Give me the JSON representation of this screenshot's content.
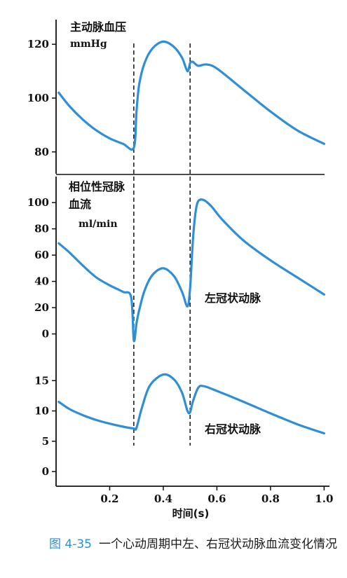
{
  "chart_data": [
    {
      "type": "line",
      "title": "主动脉血压",
      "unit": "mmHg",
      "ylim": [
        75,
        125
      ],
      "yticks": [
        80,
        100,
        120
      ],
      "color": "#2e8fd8",
      "series": [
        {
          "name": "",
          "x": [
            0.01,
            0.05,
            0.1,
            0.15,
            0.2,
            0.25,
            0.29,
            0.3,
            0.31,
            0.33,
            0.36,
            0.4,
            0.44,
            0.47,
            0.49,
            0.5,
            0.51,
            0.53,
            0.56,
            0.6,
            0.7,
            0.8,
            0.9,
            1.0
          ],
          "y": [
            102,
            97,
            92,
            88,
            85,
            83,
            81.5,
            95,
            105,
            113,
            118.5,
            121,
            119,
            115,
            110,
            113,
            113.5,
            112,
            112.5,
            111,
            103,
            95,
            88,
            83
          ]
        }
      ]
    },
    {
      "type": "line",
      "title": "相位性冠脉血流",
      "unit": "ml/min",
      "ylim": [
        -5,
        107
      ],
      "yticks": [
        0,
        20,
        40,
        60,
        80,
        100
      ],
      "series": [
        {
          "name": "左冠状动脉",
          "x": [
            0.01,
            0.05,
            0.1,
            0.15,
            0.2,
            0.25,
            0.28,
            0.29,
            0.3,
            0.31,
            0.33,
            0.36,
            0.4,
            0.44,
            0.47,
            0.49,
            0.5,
            0.51,
            0.52,
            0.53,
            0.55,
            0.58,
            0.62,
            0.7,
            0.8,
            0.9,
            1.0
          ],
          "y": [
            69,
            62,
            52,
            43,
            37,
            32,
            28,
            -5,
            8,
            18,
            33,
            45,
            50,
            44,
            32,
            21,
            35,
            70,
            92,
            101,
            102,
            97,
            87,
            71,
            56,
            43,
            30
          ]
        }
      ]
    },
    {
      "type": "line",
      "title": "",
      "unit": "",
      "ylim": [
        -1.5,
        17
      ],
      "yticks": [
        0,
        5,
        10,
        15
      ],
      "series": [
        {
          "name": "右冠状动脉",
          "x": [
            0.01,
            0.05,
            0.1,
            0.15,
            0.2,
            0.25,
            0.29,
            0.3,
            0.32,
            0.35,
            0.4,
            0.44,
            0.47,
            0.49,
            0.5,
            0.51,
            0.53,
            0.55,
            0.6,
            0.7,
            0.8,
            0.9,
            1.0
          ],
          "y": [
            11.5,
            10.3,
            9.3,
            8.5,
            7.9,
            7.4,
            7.1,
            7.2,
            10.5,
            14.2,
            16,
            15.2,
            13,
            10,
            9.8,
            11.5,
            13.8,
            14.1,
            13.3,
            11.5,
            9.6,
            7.8,
            6.3
          ]
        }
      ]
    }
  ],
  "x_axis": {
    "label": "时间(s)",
    "ticks": [
      0.2,
      0.4,
      0.6,
      0.8,
      1.0
    ],
    "tick_labels": [
      "0.2",
      "0.4",
      "0.6",
      "0.8",
      "1.0"
    ],
    "xlim": [
      0,
      1.02
    ]
  },
  "markers": {
    "x": [
      0.29,
      0.5
    ],
    "style": "dashed"
  },
  "caption": {
    "figure": "图 4-35",
    "text": "一个心动周期中左、右冠状动脉血流变化情况"
  }
}
